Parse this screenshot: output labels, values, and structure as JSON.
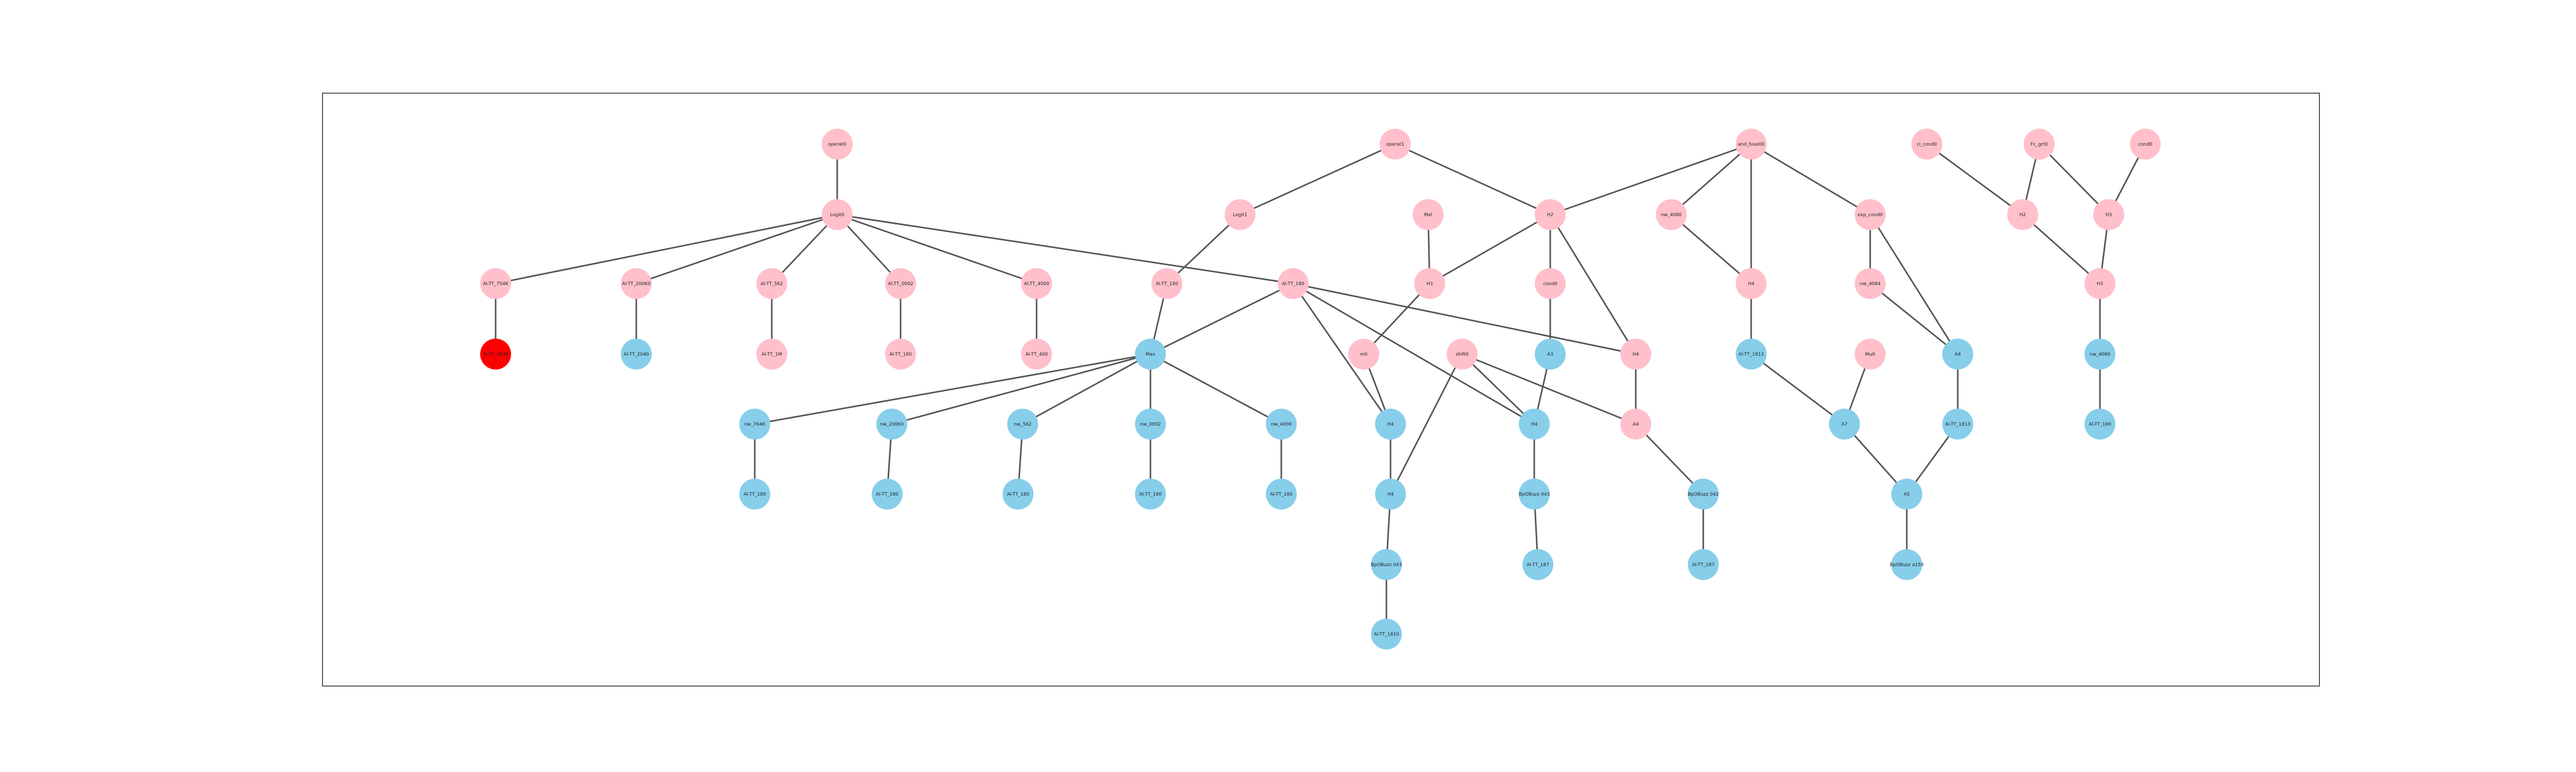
{
  "colors": {
    "pink": "#ffc0cb",
    "blue": "#87ceeb",
    "red": "#ff0000",
    "edge": "#555555",
    "frame": "#555555"
  },
  "graph": {
    "nodes": [
      {
        "id": "n1",
        "label": "operat0",
        "color": "pink"
      },
      {
        "id": "n2",
        "label": "Logit0",
        "color": "pink"
      },
      {
        "id": "n3",
        "label": "Al-TT_754K",
        "color": "pink"
      },
      {
        "id": "n4",
        "label": "Al-TT_2638",
        "color": "red"
      },
      {
        "id": "n5",
        "label": "Al-TT_200K0",
        "color": "pink"
      },
      {
        "id": "n6",
        "label": "Al-TT_2040",
        "color": "blue"
      },
      {
        "id": "n7",
        "label": "Al-TT_562",
        "color": "pink"
      },
      {
        "id": "n8",
        "label": "Al-TT_1M",
        "color": "pink"
      },
      {
        "id": "n9",
        "label": "Al-TT_0002",
        "color": "pink"
      },
      {
        "id": "n10",
        "label": "Al-TT_180",
        "color": "pink"
      },
      {
        "id": "n11",
        "label": "Al-TT_4000",
        "color": "pink"
      },
      {
        "id": "n12",
        "label": "Al-TT_400",
        "color": "pink"
      },
      {
        "id": "n13",
        "label": "Al-TT_180",
        "color": "pink"
      },
      {
        "id": "n14",
        "label": "Max",
        "color": "blue"
      },
      {
        "id": "n15",
        "label": "nw_764K",
        "color": "blue"
      },
      {
        "id": "n16",
        "label": "Al-TT_180",
        "color": "blue"
      },
      {
        "id": "n17",
        "label": "nw_200K0",
        "color": "blue"
      },
      {
        "id": "n18",
        "label": "Al-TT_180",
        "color": "blue"
      },
      {
        "id": "n19",
        "label": "nw_562",
        "color": "blue"
      },
      {
        "id": "n20",
        "label": "Al-TT_180",
        "color": "blue"
      },
      {
        "id": "n21",
        "label": "nw_0002",
        "color": "blue"
      },
      {
        "id": "n22",
        "label": "Al-TT_180",
        "color": "blue"
      },
      {
        "id": "n23",
        "label": "nw_4000",
        "color": "blue"
      },
      {
        "id": "n24",
        "label": "Al-TT_180",
        "color": "blue"
      },
      {
        "id": "n25",
        "label": "Logit1",
        "color": "pink"
      },
      {
        "id": "n26",
        "label": "operat1",
        "color": "pink"
      },
      {
        "id": "n27",
        "label": "Al-TT_180",
        "color": "pink"
      },
      {
        "id": "n28",
        "label": "Mel",
        "color": "pink"
      },
      {
        "id": "n29",
        "label": "H3",
        "color": "pink"
      },
      {
        "id": "n30",
        "label": "m0",
        "color": "pink"
      },
      {
        "id": "n31",
        "label": "H2",
        "color": "pink"
      },
      {
        "id": "n32",
        "label": "cond0",
        "color": "pink"
      },
      {
        "id": "n33",
        "label": "shift0",
        "color": "pink"
      },
      {
        "id": "n34",
        "label": "A3",
        "color": "blue"
      },
      {
        "id": "n35",
        "label": "H4",
        "color": "pink"
      },
      {
        "id": "n36",
        "label": "H4",
        "color": "blue"
      },
      {
        "id": "n37",
        "label": "H4",
        "color": "blue"
      },
      {
        "id": "n38",
        "label": "H4",
        "color": "blue"
      },
      {
        "id": "n39",
        "label": "BpOBuzz 043",
        "color": "blue"
      },
      {
        "id": "n40",
        "label": "Al-TT_1810",
        "color": "blue"
      },
      {
        "id": "n41",
        "label": "BpOBuzz 043",
        "color": "blue"
      },
      {
        "id": "n42",
        "label": "Al-TT_187",
        "color": "blue"
      },
      {
        "id": "n43",
        "label": "A4",
        "color": "pink"
      },
      {
        "id": "n44",
        "label": "BpOBuzz 042",
        "color": "blue"
      },
      {
        "id": "n45",
        "label": "Al-TT_187",
        "color": "blue"
      },
      {
        "id": "n46",
        "label": "and_fuse00",
        "color": "pink"
      },
      {
        "id": "n47",
        "label": "nw_4080",
        "color": "pink"
      },
      {
        "id": "n48",
        "label": "H4",
        "color": "pink"
      },
      {
        "id": "n49",
        "label": "Al-TT_1813",
        "color": "blue"
      },
      {
        "id": "n50",
        "label": "exp_cond0",
        "color": "pink"
      },
      {
        "id": "n51",
        "label": "nw_4084",
        "color": "pink"
      },
      {
        "id": "n52",
        "label": "Mult",
        "color": "pink"
      },
      {
        "id": "n53",
        "label": "A4",
        "color": "blue"
      },
      {
        "id": "n54",
        "label": "A7",
        "color": "blue"
      },
      {
        "id": "n55",
        "label": "Al-TT_1813",
        "color": "blue"
      },
      {
        "id": "n56",
        "label": "A5",
        "color": "blue"
      },
      {
        "id": "n57",
        "label": "BpOBuzz a150",
        "color": "blue"
      },
      {
        "id": "n58",
        "label": "cl_cond0",
        "color": "pink"
      },
      {
        "id": "n59",
        "label": "Fc_grt0",
        "color": "pink"
      },
      {
        "id": "n60",
        "label": "cond0",
        "color": "pink"
      },
      {
        "id": "n61",
        "label": "H2",
        "color": "pink"
      },
      {
        "id": "n62",
        "label": "H3",
        "color": "pink"
      },
      {
        "id": "n63",
        "label": "H3",
        "color": "pink"
      },
      {
        "id": "n64",
        "label": "nw_4080",
        "color": "blue"
      },
      {
        "id": "n65",
        "label": "Al-TT_180",
        "color": "blue"
      }
    ],
    "edges": [
      [
        "n1",
        "n2"
      ],
      [
        "n2",
        "n3"
      ],
      [
        "n2",
        "n5"
      ],
      [
        "n2",
        "n7"
      ],
      [
        "n2",
        "n9"
      ],
      [
        "n2",
        "n11"
      ],
      [
        "n2",
        "n13"
      ],
      [
        "n3",
        "n4"
      ],
      [
        "n5",
        "n6"
      ],
      [
        "n7",
        "n8"
      ],
      [
        "n9",
        "n10"
      ],
      [
        "n11",
        "n12"
      ],
      [
        "n13",
        "n14"
      ],
      [
        "n13",
        "n35"
      ],
      [
        "n13",
        "n37"
      ],
      [
        "n13",
        "n36"
      ],
      [
        "n14",
        "n15"
      ],
      [
        "n14",
        "n17"
      ],
      [
        "n14",
        "n19"
      ],
      [
        "n14",
        "n21"
      ],
      [
        "n14",
        "n23"
      ],
      [
        "n15",
        "n16"
      ],
      [
        "n17",
        "n18"
      ],
      [
        "n19",
        "n20"
      ],
      [
        "n21",
        "n22"
      ],
      [
        "n23",
        "n24"
      ],
      [
        "n26",
        "n25"
      ],
      [
        "n26",
        "n31"
      ],
      [
        "n25",
        "n27"
      ],
      [
        "n27",
        "n14"
      ],
      [
        "n28",
        "n29"
      ],
      [
        "n29",
        "n30"
      ],
      [
        "n30",
        "n37"
      ],
      [
        "n31",
        "n29"
      ],
      [
        "n31",
        "n32"
      ],
      [
        "n31",
        "n35"
      ],
      [
        "n32",
        "n34"
      ],
      [
        "n34",
        "n36"
      ],
      [
        "n33",
        "n36"
      ],
      [
        "n33",
        "n38"
      ],
      [
        "n33",
        "n43"
      ],
      [
        "n37",
        "n38"
      ],
      [
        "n38",
        "n39"
      ],
      [
        "n39",
        "n40"
      ],
      [
        "n36",
        "n41"
      ],
      [
        "n41",
        "n42"
      ],
      [
        "n35",
        "n43"
      ],
      [
        "n43",
        "n44"
      ],
      [
        "n44",
        "n45"
      ],
      [
        "n46",
        "n31"
      ],
      [
        "n46",
        "n47"
      ],
      [
        "n46",
        "n48"
      ],
      [
        "n46",
        "n50"
      ],
      [
        "n47",
        "n48"
      ],
      [
        "n48",
        "n49"
      ],
      [
        "n50",
        "n51"
      ],
      [
        "n50",
        "n53"
      ],
      [
        "n51",
        "n53"
      ],
      [
        "n49",
        "n54"
      ],
      [
        "n52",
        "n54"
      ],
      [
        "n54",
        "n56"
      ],
      [
        "n53",
        "n55"
      ],
      [
        "n55",
        "n56"
      ],
      [
        "n56",
        "n57"
      ],
      [
        "n58",
        "n61"
      ],
      [
        "n59",
        "n61"
      ],
      [
        "n59",
        "n62"
      ],
      [
        "n60",
        "n62"
      ],
      [
        "n61",
        "n63"
      ],
      [
        "n62",
        "n63"
      ],
      [
        "n63",
        "n64"
      ],
      [
        "n64",
        "n65"
      ]
    ]
  }
}
